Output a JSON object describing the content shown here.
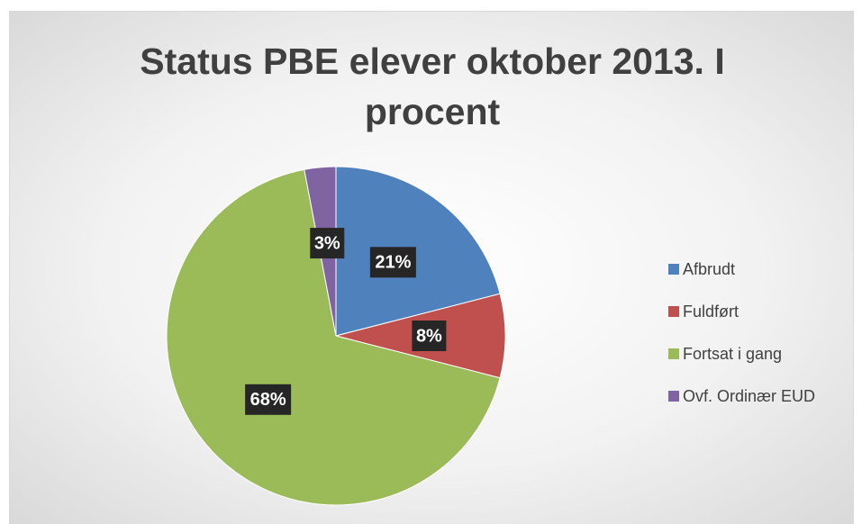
{
  "chart_data": {
    "type": "pie",
    "title": "Status PBE elever oktober 2013. I procent",
    "categories": [
      "Afbrudt",
      "Fuldført",
      "Fortsat i gang",
      "Ovf. Ordinær EUD"
    ],
    "values": [
      21,
      8,
      68,
      3
    ],
    "value_labels": [
      "21%",
      "8%",
      "68%",
      "3%"
    ],
    "colors": [
      "#4f81bd",
      "#c0504d",
      "#9bbb59",
      "#8064a2"
    ],
    "legend": "right"
  }
}
